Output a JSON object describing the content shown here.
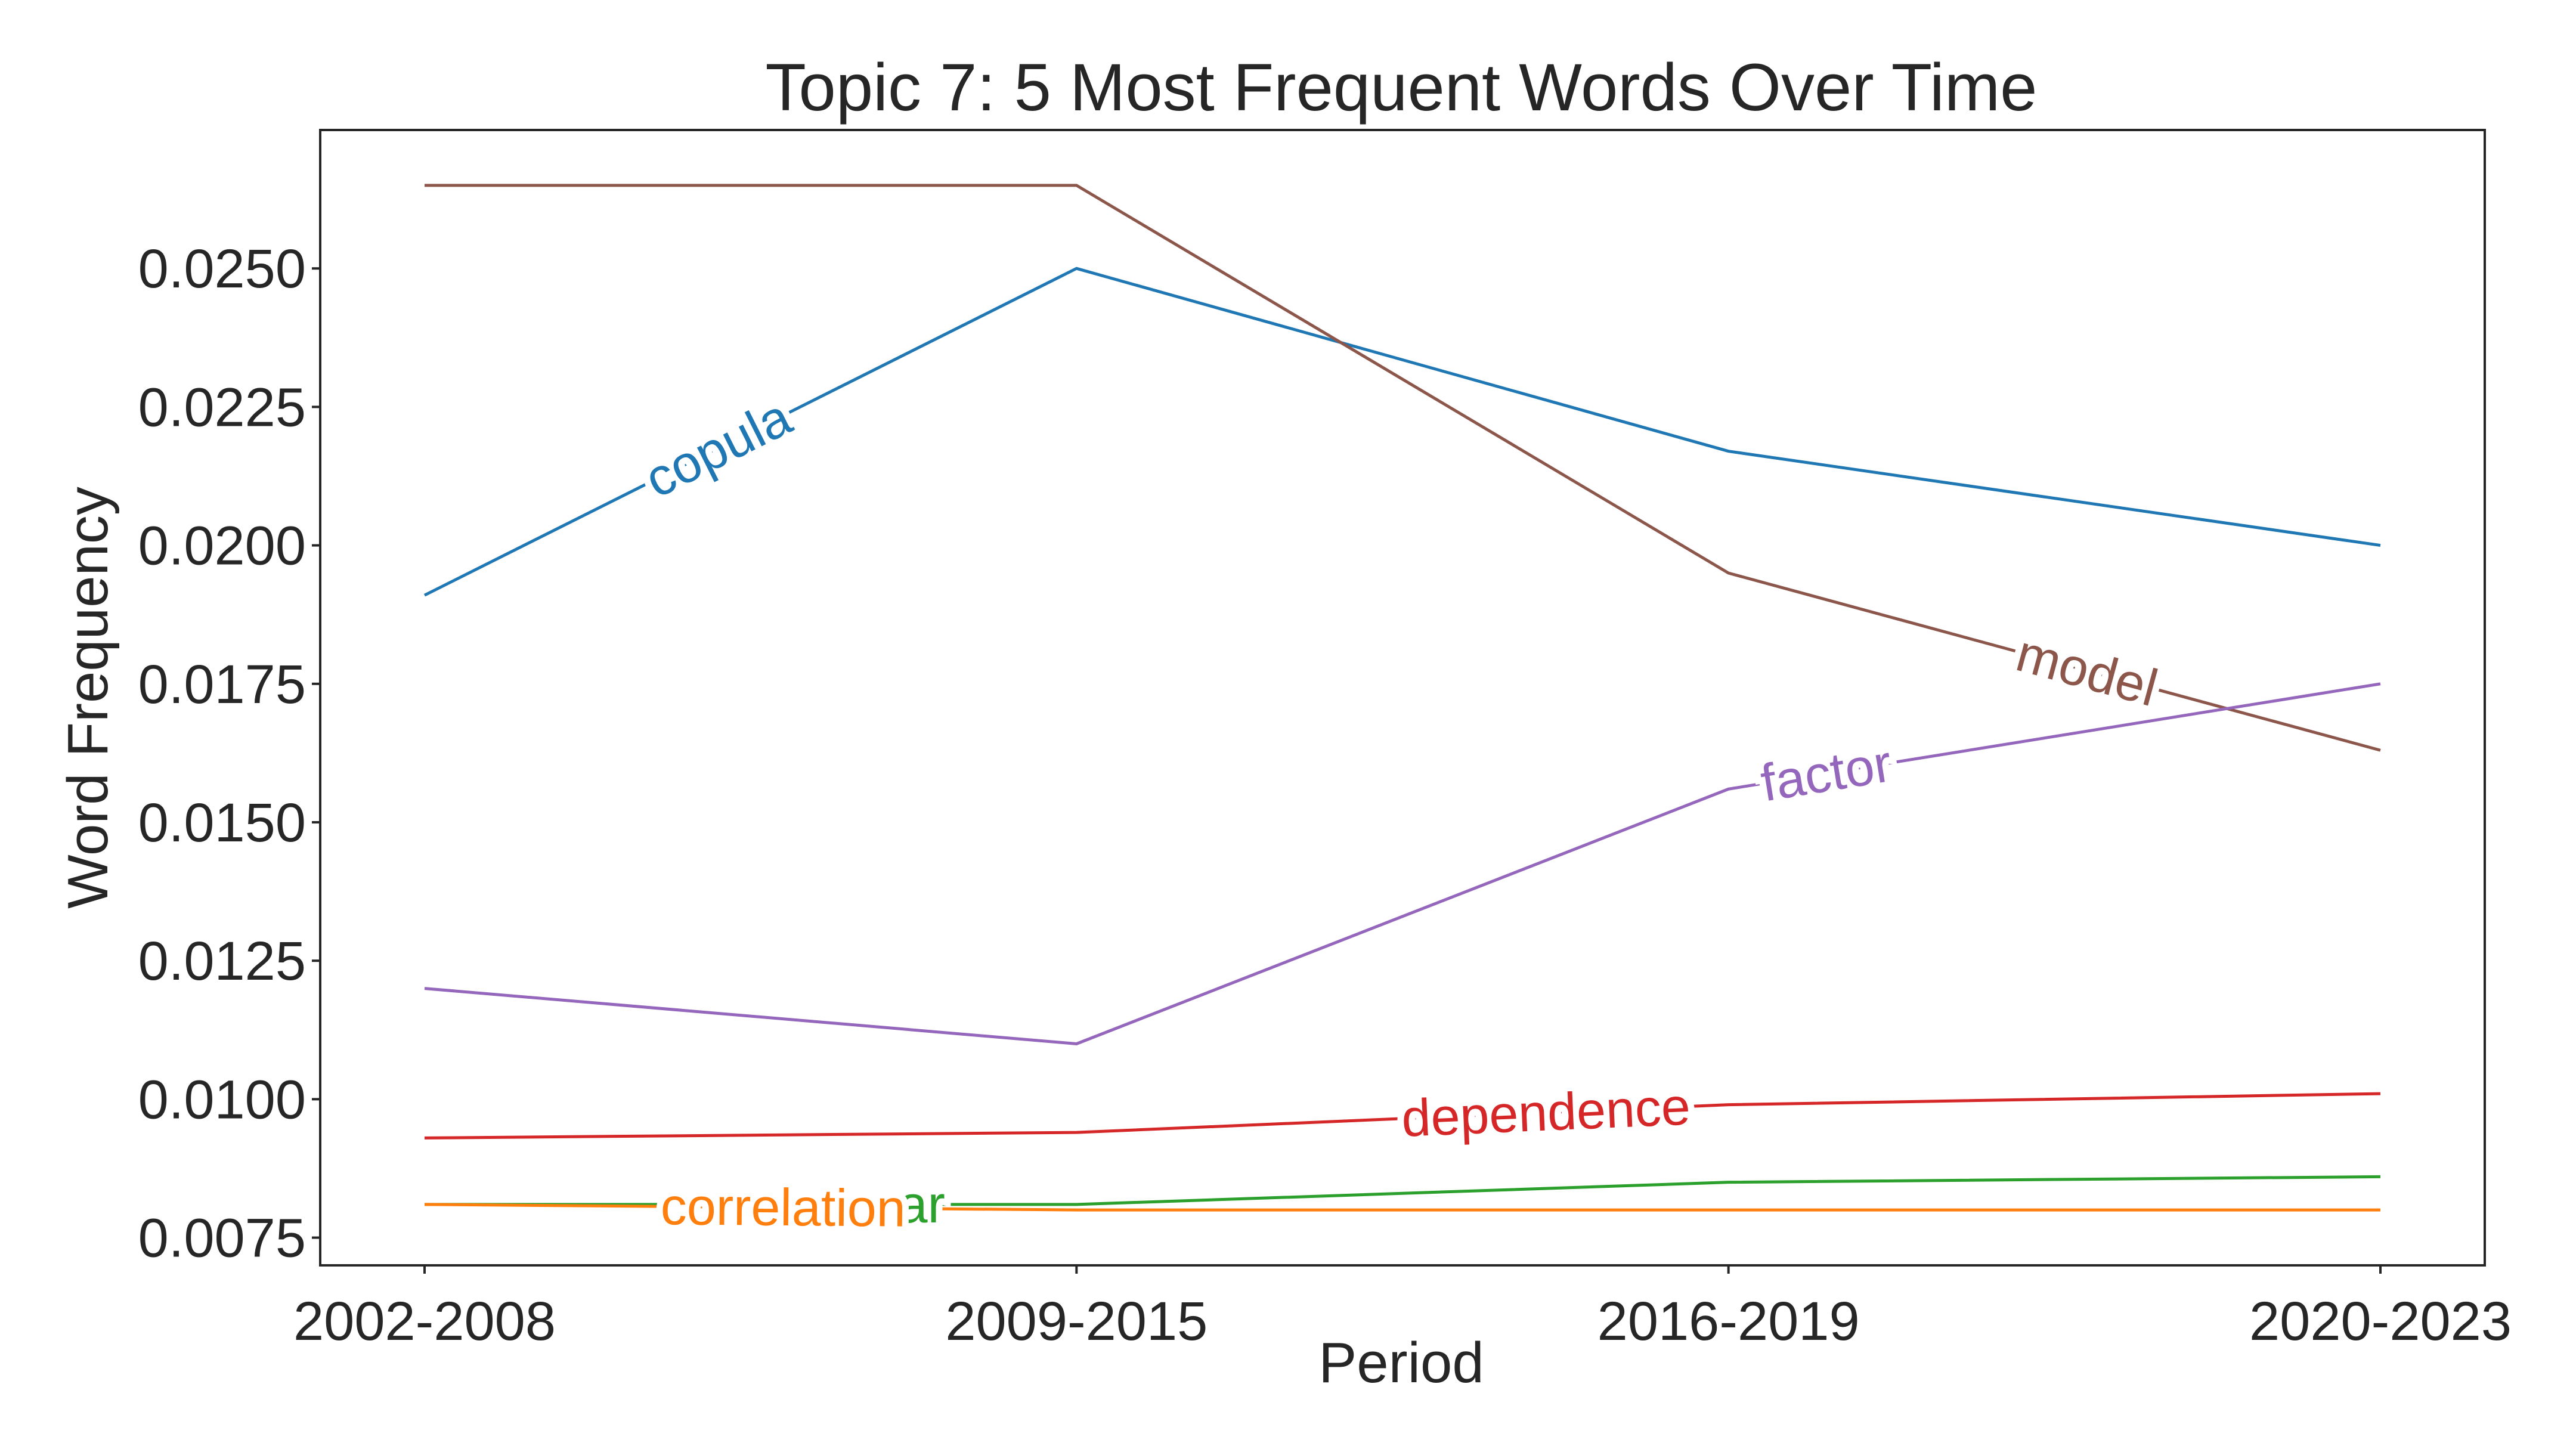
{
  "chart_data": {
    "type": "line",
    "title": "Topic 7: 5 Most Frequent Words Over Time",
    "xlabel": "Period",
    "ylabel": "Word Frequency",
    "categories": [
      "2002-2008",
      "2009-2015",
      "2016-2019",
      "2020-2023"
    ],
    "ylim": [
      0.007,
      0.0275
    ],
    "yticks": [
      0.0075,
      0.01,
      0.0125,
      0.015,
      0.0175,
      0.02,
      0.0225,
      0.025
    ],
    "ytick_labels": [
      "0.0075",
      "0.0100",
      "0.0125",
      "0.0150",
      "0.0175",
      "0.0200",
      "0.0225",
      "0.0250"
    ],
    "grid": false,
    "legend": "none",
    "series": [
      {
        "name": "copula",
        "color": "#1f77b4",
        "values": [
          0.0191,
          0.025,
          0.0217,
          0.02
        ]
      },
      {
        "name": "model",
        "color": "#8c564b",
        "values": [
          0.0265,
          0.0265,
          0.0195,
          0.0163
        ]
      },
      {
        "name": "factor",
        "color": "#9467bd",
        "values": [
          0.012,
          0.011,
          0.0156,
          0.0175
        ]
      },
      {
        "name": "dependence",
        "color": "#d62728",
        "values": [
          0.0093,
          0.0094,
          0.0099,
          0.0101
        ]
      },
      {
        "name": "covar",
        "color": "#2ca02c",
        "values": [
          0.0081,
          0.0081,
          0.0085,
          0.0086
        ]
      },
      {
        "name": "correlation",
        "color": "#ff7f0e",
        "values": [
          0.0081,
          0.008,
          0.008,
          0.008
        ]
      }
    ]
  }
}
